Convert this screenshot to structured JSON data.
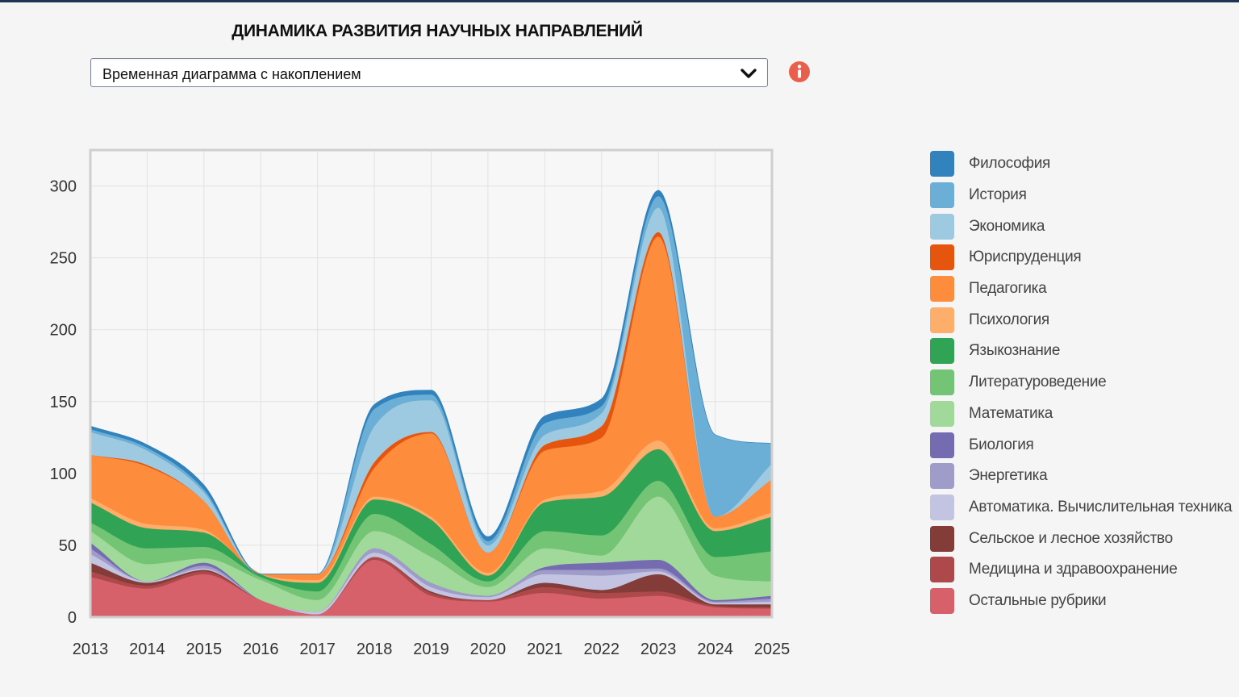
{
  "header": {
    "title": "ДИНАМИКА РАЗВИТИЯ НАУЧНЫХ НАПРАВЛЕНИЙ",
    "chart_type_select": {
      "value": "Временная диаграмма с накоплением"
    },
    "info_icon": "info-icon"
  },
  "chart_data": {
    "type": "area",
    "stacked": true,
    "smooth": true,
    "title": "",
    "xlabel": "",
    "ylabel": "",
    "categories": [
      "2013",
      "2014",
      "2015",
      "2016",
      "2017",
      "2018",
      "2019",
      "2020",
      "2021",
      "2022",
      "2023",
      "2024",
      "2025"
    ],
    "ylim": [
      0,
      325
    ],
    "yticks": [
      0,
      50,
      100,
      150,
      200,
      250,
      300
    ],
    "grid": true,
    "legend_position": "right",
    "series": [
      {
        "name": "Остальные рубрики",
        "color": "#d6616b",
        "values": [
          28,
          20,
          30,
          12,
          2,
          40,
          15,
          11,
          17,
          13,
          15,
          7,
          6
        ]
      },
      {
        "name": "Медицина и здравоохранение",
        "color": "#ad494a",
        "values": [
          4,
          2,
          2,
          0,
          0,
          2,
          2,
          1,
          4,
          4,
          3,
          1,
          1
        ]
      },
      {
        "name": "Сельское и лесное хозяйство",
        "color": "#843c39",
        "values": [
          6,
          2,
          1,
          0,
          0,
          0,
          1,
          0,
          3,
          2,
          12,
          1,
          2
        ]
      },
      {
        "name": "Автоматика. Вычислительная техника",
        "color": "#c3c3e2",
        "values": [
          6,
          1,
          1,
          0,
          2,
          3,
          3,
          2,
          6,
          10,
          2,
          1,
          2
        ]
      },
      {
        "name": "Энергетика",
        "color": "#a09cc9",
        "values": [
          4,
          0,
          2,
          0,
          0,
          3,
          3,
          1,
          3,
          4,
          2,
          1,
          2
        ]
      },
      {
        "name": "Биология",
        "color": "#756bb1",
        "values": [
          4,
          0,
          2,
          0,
          0,
          0,
          0,
          0,
          2,
          5,
          6,
          1,
          2
        ]
      },
      {
        "name": "Математика",
        "color": "#a1d99b",
        "values": [
          8,
          12,
          3,
          14,
          8,
          12,
          18,
          6,
          13,
          5,
          44,
          17,
          10
        ]
      },
      {
        "name": "Литературоведение",
        "color": "#74c476",
        "values": [
          6,
          11,
          8,
          2,
          6,
          12,
          9,
          4,
          12,
          14,
          11,
          13,
          21
        ]
      },
      {
        "name": "Языкознание",
        "color": "#31a354",
        "values": [
          14,
          14,
          10,
          2,
          6,
          10,
          17,
          4,
          20,
          27,
          22,
          18,
          24
        ]
      },
      {
        "name": "Психология",
        "color": "#fdae6b",
        "values": [
          3,
          3,
          2,
          0,
          2,
          2,
          2,
          2,
          2,
          4,
          6,
          2,
          3
        ]
      },
      {
        "name": "Педагогика",
        "color": "#fd8d3c",
        "values": [
          30,
          40,
          20,
          0,
          4,
          20,
          58,
          14,
          34,
          37,
          142,
          8,
          23
        ]
      },
      {
        "name": "Юриспруденция",
        "color": "#e6550d",
        "values": [
          0,
          1,
          0,
          0,
          0,
          4,
          1,
          0,
          4,
          8,
          3,
          0,
          0
        ]
      },
      {
        "name": "Экономика",
        "color": "#9ecae1",
        "values": [
          16,
          10,
          6,
          0,
          0,
          25,
          22,
          5,
          7,
          9,
          17,
          0,
          11
        ]
      },
      {
        "name": "История",
        "color": "#6baed6",
        "values": [
          2,
          2,
          2,
          0,
          0,
          12,
          4,
          3,
          8,
          5,
          8,
          57,
          14
        ]
      },
      {
        "name": "Философия",
        "color": "#3182bd",
        "values": [
          2,
          2,
          3,
          0,
          0,
          3,
          3,
          3,
          5,
          5,
          4,
          0,
          0
        ]
      }
    ]
  }
}
